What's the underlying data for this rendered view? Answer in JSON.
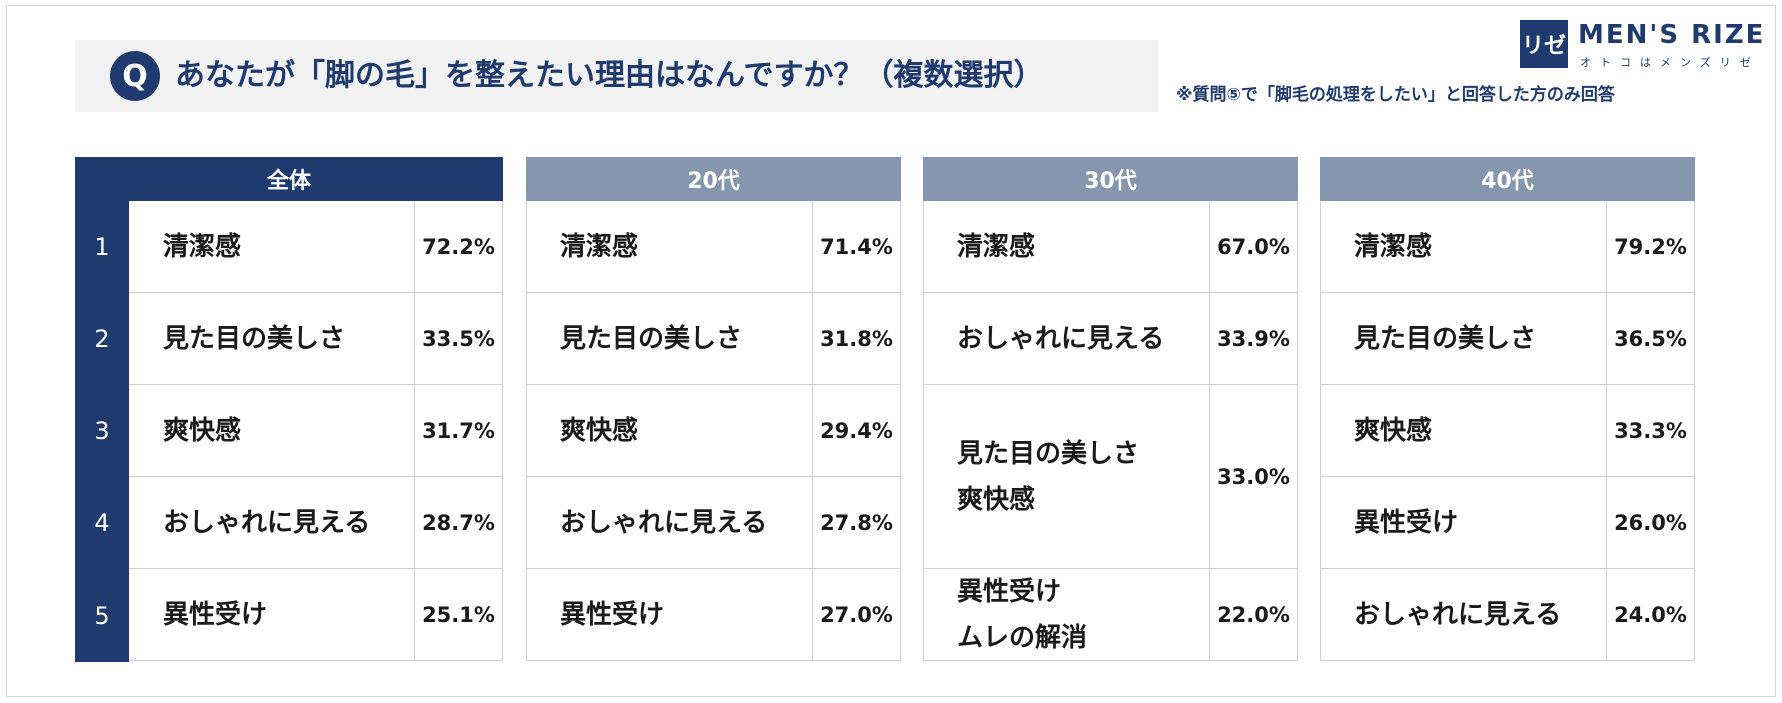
{
  "question": {
    "badge": "Q",
    "text": "あなたが「脚の毛」を整えたい理由はなんですか？（複数選択）",
    "note": "※質問⑤で「脚毛の処理をしたい」と回答した方のみ回答"
  },
  "logo": {
    "mark": "リゼ",
    "name": "MEN'S RIZE",
    "tagline": "オトコはメンズリゼ"
  },
  "colors": {
    "navy": "#1f3a6e",
    "slate": "#8497ae",
    "panel": "#f1f1f1"
  },
  "chart_data": {
    "type": "table",
    "title": "あなたが「脚の毛」を整えたい理由はなんですか？（複数選択）",
    "ranks": [
      "1",
      "2",
      "3",
      "4",
      "5"
    ],
    "groups": [
      {
        "name": "全体",
        "rows": [
          {
            "labels": [
              "清潔感"
            ],
            "value": "72.2%"
          },
          {
            "labels": [
              "見た目の美しさ"
            ],
            "value": "33.5%"
          },
          {
            "labels": [
              "爽快感"
            ],
            "value": "31.7%"
          },
          {
            "labels": [
              "おしゃれに見える"
            ],
            "value": "28.7%"
          },
          {
            "labels": [
              "異性受け"
            ],
            "value": "25.1%"
          }
        ]
      },
      {
        "name": "20代",
        "rows": [
          {
            "labels": [
              "清潔感"
            ],
            "value": "71.4%"
          },
          {
            "labels": [
              "見た目の美しさ"
            ],
            "value": "31.8%"
          },
          {
            "labels": [
              "爽快感"
            ],
            "value": "29.4%"
          },
          {
            "labels": [
              "おしゃれに見える"
            ],
            "value": "27.8%"
          },
          {
            "labels": [
              "異性受け"
            ],
            "value": "27.0%"
          }
        ]
      },
      {
        "name": "30代",
        "rows": [
          {
            "labels": [
              "清潔感"
            ],
            "value": "67.0%"
          },
          {
            "labels": [
              "おしゃれに見える"
            ],
            "value": "33.9%"
          },
          {
            "labels": [
              "見た目の美しさ",
              "爽快感"
            ],
            "value": "33.0%"
          },
          {
            "labels": [
              "異性受け",
              "ムレの解消"
            ],
            "value": "22.0%"
          }
        ]
      },
      {
        "name": "40代",
        "rows": [
          {
            "labels": [
              "清潔感"
            ],
            "value": "79.2%"
          },
          {
            "labels": [
              "見た目の美しさ"
            ],
            "value": "36.5%"
          },
          {
            "labels": [
              "爽快感"
            ],
            "value": "33.3%"
          },
          {
            "labels": [
              "異性受け"
            ],
            "value": "26.0%"
          },
          {
            "labels": [
              "おしゃれに見える"
            ],
            "value": "24.0%"
          }
        ]
      }
    ]
  }
}
